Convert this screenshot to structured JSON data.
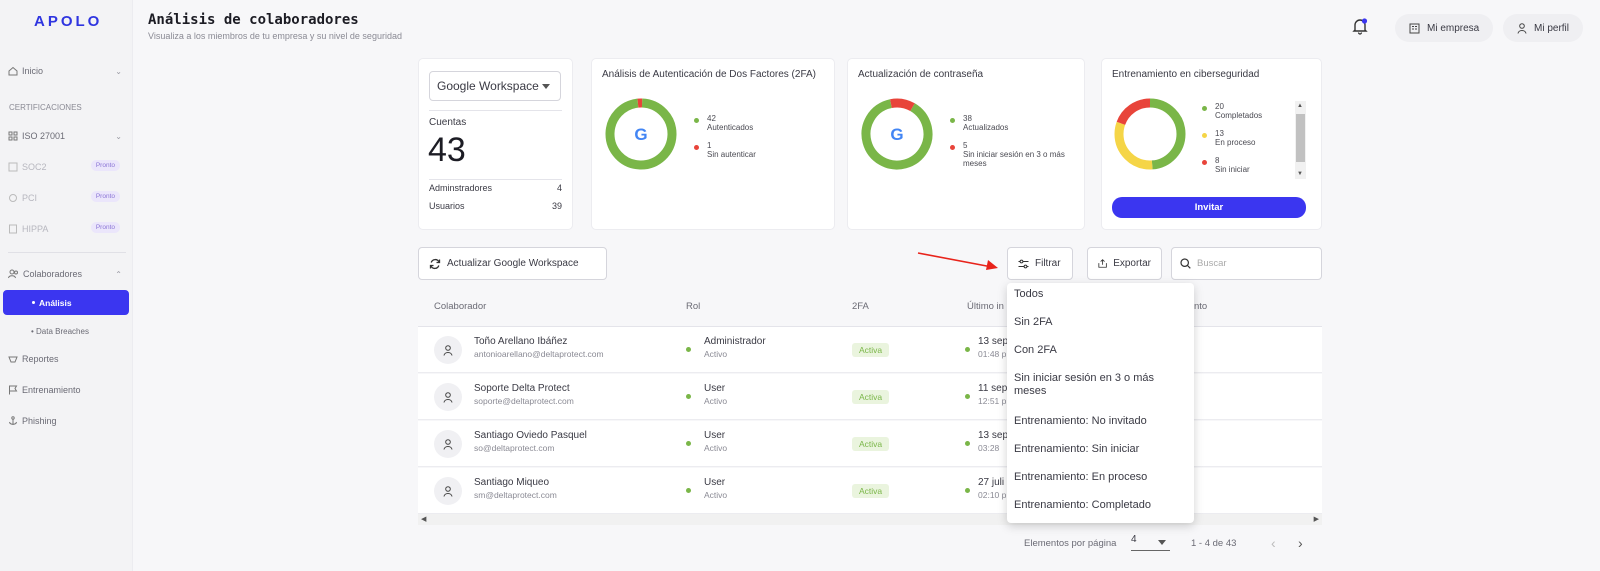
{
  "sidebar": {
    "logo": "APOLO",
    "inicio": "Inicio",
    "section": "CERTIFICACIONES",
    "iso": "ISO 27001",
    "soc2": "SOC2",
    "pci": "PCI",
    "hippa": "HIPPA",
    "pronto": "Pronto",
    "colaboradores": "Colaboradores",
    "analisis": "Análisis",
    "breaches": "Data Breaches",
    "reportes": "Reportes",
    "entrenamiento": "Entrenamiento",
    "phishing": "Phishing"
  },
  "header": {
    "title": "Análisis de colaboradores",
    "subtitle": "Visualiza a los miembros de tu empresa y su nivel de seguridad",
    "empresa": "Mi empresa",
    "perfil": "Mi perfil"
  },
  "accounts": {
    "select_value": "Google Workspace",
    "label": "Cuentas",
    "total": "43",
    "admins_label": "Adminstradores",
    "admins": "4",
    "users_label": "Usuarios",
    "users": "39"
  },
  "tfa": {
    "title": "Análisis de Autenticación de Dos Factores (2FA)",
    "auth_count": "42",
    "auth_label": "Autenticados",
    "noauth_count": "1",
    "noauth_label": "Sin autenticar",
    "google_letter": "G"
  },
  "password": {
    "title": "Actualización de contraseña",
    "updated_count": "38",
    "updated_label": "Actualizados",
    "stale_count": "5",
    "stale_label": "Sin iniciar sesión en 3 o más meses",
    "google_letter": "G"
  },
  "training": {
    "title": "Entrenamiento en ciberseguridad",
    "completed_count": "20",
    "completed_label": "Completados",
    "progress_count": "13",
    "progress_label": "En proceso",
    "notstarted_count": "8",
    "notstarted_label": "Sin iniciar",
    "invite": "Invitar"
  },
  "toolbar": {
    "refresh": "Actualizar Google Workspace",
    "filter": "Filtrar",
    "export": "Exportar",
    "search_placeholder": "Buscar"
  },
  "table": {
    "headers": [
      "Colaborador",
      "Rol",
      "2FA",
      "Último in",
      "nto"
    ],
    "rows": [
      {
        "name": "Toño Arellano Ibáñez",
        "email": "antonioarellano@deltaprotect.com",
        "role": "Administrador",
        "status": "Activo",
        "tfa": "Activa",
        "date": "13 sep",
        "time": "01:48 p"
      },
      {
        "name": "Soporte Delta Protect",
        "email": "soporte@deltaprotect.com",
        "role": "User",
        "status": "Activo",
        "tfa": "Activa",
        "date": "11 sep",
        "time": "12:51 p"
      },
      {
        "name": "Santiago Oviedo Pasquel",
        "email": "so@deltaprotect.com",
        "role": "User",
        "status": "Activo",
        "tfa": "Activa",
        "date": "13 sep",
        "time": "03:28"
      },
      {
        "name": "Santiago Miqueo",
        "email": "sm@deltaprotect.com",
        "role": "User",
        "status": "Activo",
        "tfa": "Activa",
        "date": "27 juli",
        "time": "02:10 p"
      }
    ]
  },
  "pagination": {
    "label": "Elementos por página",
    "value": "4",
    "range": "1 - 4 de 43"
  },
  "filter_menu": {
    "items": [
      "Todos",
      "Sin 2FA",
      "Con 2FA",
      "Sin iniciar sesión en 3 o más meses",
      "Entrenamiento: No invitado",
      "Entrenamiento: Sin iniciar",
      "Entrenamiento: En proceso",
      "Entrenamiento: Completado"
    ]
  },
  "colors": {
    "accent": "#3b36f0",
    "green": "#7ab648",
    "red": "#e8443a",
    "yellow": "#f5d547"
  },
  "charts": {
    "tfa": [
      42,
      1
    ],
    "password": [
      38,
      5
    ],
    "training": [
      20,
      13,
      8
    ]
  }
}
